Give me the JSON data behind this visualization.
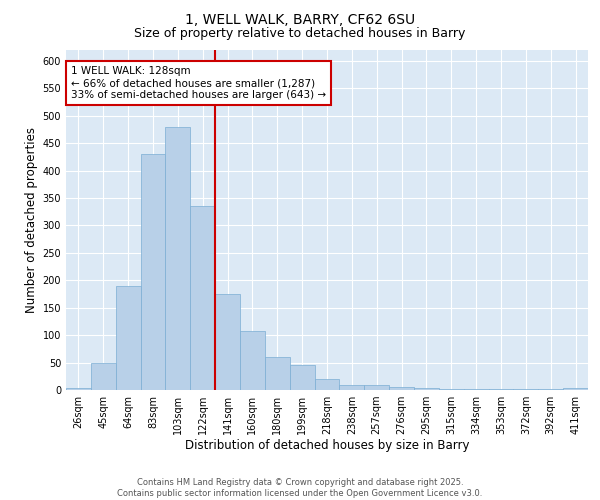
{
  "title_line1": "1, WELL WALK, BARRY, CF62 6SU",
  "title_line2": "Size of property relative to detached houses in Barry",
  "xlabel": "Distribution of detached houses by size in Barry",
  "ylabel": "Number of detached properties",
  "categories": [
    "26sqm",
    "45sqm",
    "64sqm",
    "83sqm",
    "103sqm",
    "122sqm",
    "141sqm",
    "160sqm",
    "180sqm",
    "199sqm",
    "218sqm",
    "238sqm",
    "257sqm",
    "276sqm",
    "295sqm",
    "315sqm",
    "334sqm",
    "353sqm",
    "372sqm",
    "392sqm",
    "411sqm"
  ],
  "values": [
    3,
    50,
    190,
    430,
    480,
    335,
    175,
    108,
    60,
    45,
    20,
    10,
    10,
    5,
    4,
    2,
    1,
    2,
    1,
    1,
    3
  ],
  "bar_color": "#b8d0e8",
  "bar_edge_color": "#7aadd4",
  "vline_x": 5.5,
  "vline_color": "#cc0000",
  "annotation_box_text": "1 WELL WALK: 128sqm\n← 66% of detached houses are smaller (1,287)\n33% of semi-detached houses are larger (643) →",
  "ylim": [
    0,
    620
  ],
  "yticks": [
    0,
    50,
    100,
    150,
    200,
    250,
    300,
    350,
    400,
    450,
    500,
    550,
    600
  ],
  "footer_text": "Contains HM Land Registry data © Crown copyright and database right 2025.\nContains public sector information licensed under the Open Government Licence v3.0.",
  "plot_bg_color": "#dce9f5",
  "fig_bg_color": "#ffffff",
  "grid_color": "#ffffff",
  "title_fontsize": 10,
  "subtitle_fontsize": 9,
  "tick_fontsize": 7,
  "label_fontsize": 8.5,
  "footer_fontsize": 6,
  "ann_fontsize": 7.5
}
